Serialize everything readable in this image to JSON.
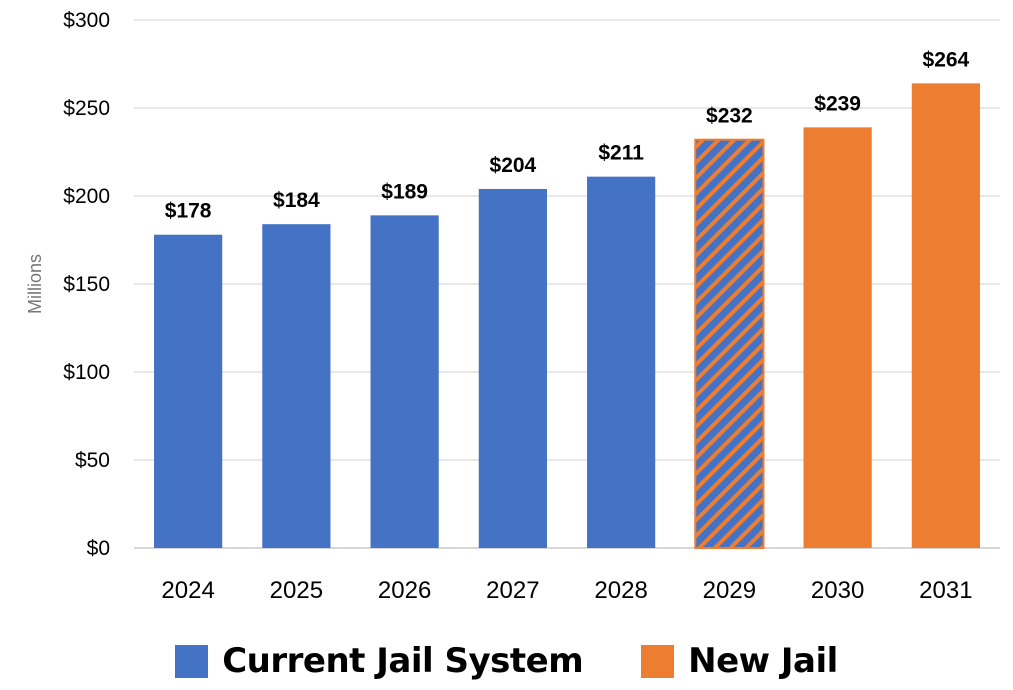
{
  "chart_data": {
    "type": "bar",
    "categories": [
      "2024",
      "2025",
      "2026",
      "2027",
      "2028",
      "2029",
      "2030",
      "2031"
    ],
    "values": [
      178,
      184,
      189,
      204,
      211,
      232,
      239,
      264
    ],
    "data_labels": [
      "$178",
      "$184",
      "$189",
      "$204",
      "$211",
      "$232",
      "$239",
      "$264"
    ],
    "bar_style": [
      "current",
      "current",
      "current",
      "current",
      "current",
      "transition",
      "new",
      "new"
    ],
    "ylabel": "Millions",
    "xlabel": "",
    "ylim": [
      0,
      300
    ],
    "y_ticks": [
      0,
      50,
      100,
      150,
      200,
      250,
      300
    ],
    "y_tick_labels": [
      "$0",
      "$50",
      "$100",
      "$150",
      "$200",
      "$250",
      "$300"
    ],
    "grid": true,
    "legend_placement": "bottom",
    "series": [
      {
        "name": "Current Jail System",
        "color": "#4472C4"
      },
      {
        "name": "New Jail",
        "color": "#ED7D31"
      }
    ]
  },
  "colors": {
    "current": "#4472C4",
    "new": "#ED7D31",
    "grid": "#d9d9d9",
    "axis": "#bfbfbf"
  }
}
